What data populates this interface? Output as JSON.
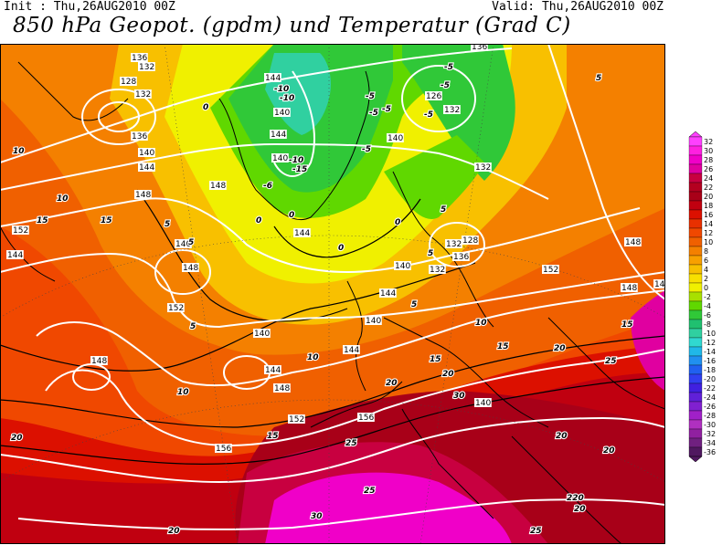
{
  "header": {
    "init": "Init : Thu,26AUG2010 00Z",
    "valid": "Valid: Thu,26AUG2010 00Z",
    "title": "850 hPa Geopot. (gpdm) und Temperatur (Grad C)"
  },
  "legend": {
    "stops": [
      {
        "label": "32",
        "color": "#ff40ff"
      },
      {
        "label": "30",
        "color": "#ff20e0"
      },
      {
        "label": "28",
        "color": "#f000c8"
      },
      {
        "label": "26",
        "color": "#e000a0"
      },
      {
        "label": "24",
        "color": "#c80040"
      },
      {
        "label": "22",
        "color": "#b40020"
      },
      {
        "label": "20",
        "color": "#a80018"
      },
      {
        "label": "18",
        "color": "#c00010"
      },
      {
        "label": "16",
        "color": "#dc1000"
      },
      {
        "label": "14",
        "color": "#e83000"
      },
      {
        "label": "12",
        "color": "#f04800"
      },
      {
        "label": "10",
        "color": "#f06000"
      },
      {
        "label": "8",
        "color": "#f48000"
      },
      {
        "label": "6",
        "color": "#f8a000"
      },
      {
        "label": "4",
        "color": "#f8c000"
      },
      {
        "label": "2",
        "color": "#f8e000"
      },
      {
        "label": "0",
        "color": "#f0f000"
      },
      {
        "label": "-2",
        "color": "#a8e000"
      },
      {
        "label": "-4",
        "color": "#60d800"
      },
      {
        "label": "-6",
        "color": "#30c838"
      },
      {
        "label": "-8",
        "color": "#20c070"
      },
      {
        "label": "-10",
        "color": "#30d0a0"
      },
      {
        "label": "-12",
        "color": "#30d8d0"
      },
      {
        "label": "-14",
        "color": "#20b8e8"
      },
      {
        "label": "-16",
        "color": "#2090f0"
      },
      {
        "label": "-18",
        "color": "#2060f0"
      },
      {
        "label": "-20",
        "color": "#3040f0"
      },
      {
        "label": "-22",
        "color": "#4020e0"
      },
      {
        "label": "-24",
        "color": "#6020d8"
      },
      {
        "label": "-26",
        "color": "#8020d0"
      },
      {
        "label": "-28",
        "color": "#a020c8"
      },
      {
        "label": "-30",
        "color": "#b030c0"
      },
      {
        "label": "-32",
        "color": "#9020a0"
      },
      {
        "label": "-34",
        "color": "#702080"
      },
      {
        "label": "-36",
        "color": "#501860"
      }
    ]
  },
  "geopotential_labels": [
    "136",
    "132",
    "128",
    "132",
    "136",
    "140",
    "144",
    "148",
    "152",
    "144",
    "140",
    "148",
    "152",
    "144",
    "140",
    "144",
    "140",
    "148",
    "144",
    "148",
    "152",
    "156",
    "156",
    "140",
    "144",
    "140",
    "136",
    "132",
    "128",
    "132",
    "140",
    "144",
    "148",
    "152",
    "148",
    "148",
    "144",
    "136",
    "126",
    "132",
    "140",
    "132",
    "144",
    "140"
  ],
  "temperature_labels": [
    "-10",
    "-10",
    "-5",
    "-5",
    "-10",
    "-15",
    "-5",
    "-5",
    "-5",
    "-6",
    "-5",
    "-5",
    "0",
    "0",
    "0",
    "0",
    "0",
    "5",
    "5",
    "5",
    "5",
    "5",
    "5",
    "10",
    "10",
    "10",
    "10",
    "15",
    "15",
    "15",
    "15",
    "15",
    "15",
    "20",
    "20",
    "20",
    "20",
    "20",
    "20",
    "25",
    "25",
    "25",
    "30",
    "30",
    "220",
    "25",
    "20",
    "20",
    "10",
    "5"
  ]
}
